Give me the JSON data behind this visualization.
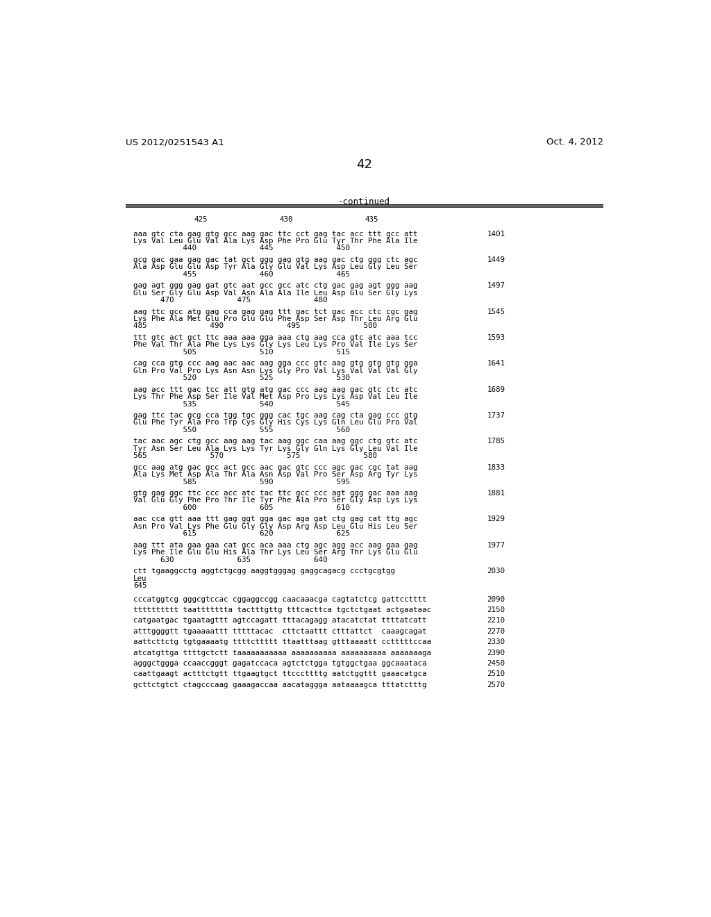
{
  "header_left": "US 2012/0251543 A1",
  "header_right": "Oct. 4, 2012",
  "page_number": "42",
  "continued_label": "-continued",
  "background_color": "#ffffff",
  "text_color": "#000000",
  "sequence_blocks": [
    {
      "dna": "aaa gtc cta gag gtg gcc aag gac ttc cct gag tac acc ttt gcc att",
      "aa": "Lys Val Leu Glu Val Ala Lys Asp Phe Pro Glu Tyr Thr Phe Ala Ile",
      "num_line": "           440              445              450",
      "right_num": "1401"
    },
    {
      "dna": "gcg gac gaa gag gac tat gct ggg gag gtg aag gac ctg ggg ctc agc",
      "aa": "Ala Asp Glu Glu Asp Tyr Ala Gly Glu Val Lys Asp Leu Gly Leu Ser",
      "num_line": "           455              460              465",
      "right_num": "1449"
    },
    {
      "dna": "gag agt ggg gag gat gtc aat gcc gcc atc ctg gac gag agt ggg aag",
      "aa": "Glu Ser Gly Glu Asp Val Asn Ala Ala Ile Leu Asp Glu Ser Gly Lys",
      "num_line": "      470              475              480",
      "right_num": "1497"
    },
    {
      "dna": "aag ttc gcc atg gag cca gag gag ttt gac tct gac acc ctc cgc gag",
      "aa": "Lys Phe Ala Met Glu Pro Glu Glu Phe Asp Ser Asp Thr Leu Arg Glu",
      "num_line": "485              490              495              500",
      "right_num": "1545"
    },
    {
      "dna": "ttt gtc act gct ttc aaa aaa gga aaa ctg aag cca gtc atc aaa tcc",
      "aa": "Phe Val Thr Ala Phe Lys Lys Gly Lys Leu Lys Pro Val Ile Lys Ser",
      "num_line": "           505              510              515",
      "right_num": "1593"
    },
    {
      "dna": "cag cca gtg ccc aag aac aac aag gga ccc gtc aag gtg gtg gtg gga",
      "aa": "Gln Pro Val Pro Lys Asn Asn Lys Gly Pro Val Lys Val Val Val Gly",
      "num_line": "           520              525              530",
      "right_num": "1641"
    },
    {
      "dna": "aag acc ttt gac tcc att gtg atg gac ccc aag aag gac gtc ctc atc",
      "aa": "Lys Thr Phe Asp Ser Ile Val Met Asp Pro Lys Lys Asp Val Leu Ile",
      "num_line": "           535              540              545",
      "right_num": "1689"
    },
    {
      "dna": "gag ttc tac gcg cca tgg tgc ggg cac tgc aag cag cta gag ccc gtg",
      "aa": "Glu Phe Tyr Ala Pro Trp Cys Gly His Cys Lys Gln Leu Glu Pro Val",
      "num_line": "           550              555              560",
      "right_num": "1737"
    },
    {
      "dna": "tac aac agc ctg gcc aag aag tac aag ggc caa aag ggc ctg gtc atc",
      "aa": "Tyr Asn Ser Leu Ala Lys Lys Tyr Lys Gly Gln Lys Gly Leu Val Ile",
      "num_line": "565              570              575              580",
      "right_num": "1785"
    },
    {
      "dna": "gcc aag atg gac gcc act gcc aac gac gtc ccc agc gac cgc tat aag",
      "aa": "Ala Lys Met Asp Ala Thr Ala Asn Asp Val Pro Ser Asp Arg Tyr Lys",
      "num_line": "           585              590              595",
      "right_num": "1833"
    },
    {
      "dna": "gtg gag ggc ttc ccc acc atc tac ttc gcc ccc agt ggg gac aaa aag",
      "aa": "Val Glu Gly Phe Pro Thr Ile Tyr Phe Ala Pro Ser Gly Asp Lys Lys",
      "num_line": "           600              605              610",
      "right_num": "1881"
    },
    {
      "dna": "aac cca gtt aaa ttt gag ggt gga gac aga gat ctg gag cat ttg agc",
      "aa": "Asn Pro Val Lys Phe Glu Gly Gly Asp Arg Asp Leu Glu His Leu Ser",
      "num_line": "           615              620              625",
      "right_num": "1929"
    },
    {
      "dna": "aag ttt ata gaa gaa cat gcc aca aaa ctg agc agg acc aag gaa gag",
      "aa": "Lys Phe Ile Glu Glu His Ala Thr Lys Leu Ser Arg Thr Lys Glu Glu",
      "num_line": "      630              635              640",
      "right_num": "1977"
    },
    {
      "dna": "ctt tgaaggcctg aggtctgcgg aaggtgggag gaggcagacg ccctgcgtgg",
      "aa": "Leu",
      "num_line": "645",
      "right_num": "2030"
    }
  ],
  "noncoding_blocks": [
    {
      "seq": "cccatggtcg gggcgtccac cggaggccgg caacaaacga cagtatctcg gattcctttt",
      "right_num": "2090"
    },
    {
      "seq": "tttttttttt taattttttta tactttgttg tttcacttca tgctctgaat actgaataac",
      "right_num": "2150"
    },
    {
      "seq": "catgaatgac tgaatagttt agtccagatt tttacagagg atacatctat ttttatcatt",
      "right_num": "2210"
    },
    {
      "seq": "atttggggtt tgaaaaattt tttttacac  cttctaattt ctttattct  caaagcagat",
      "right_num": "2270"
    },
    {
      "seq": "aattcttctg tgtgaaaatg ttttcttttt ttaatttaag gtttaaaatt cctttttccaa",
      "right_num": "2330"
    },
    {
      "seq": "atcatgttga ttttgctctt taaaaaaaaaaa aaaaaaaaaa aaaaaaaaaa aaaaaaaga",
      "right_num": "2390"
    },
    {
      "seq": "agggctggga ccaaccgggt gagatccaca agtctctgga tgtggctgaa ggcaaataca",
      "right_num": "2450"
    },
    {
      "seq": "caattgaagt actttctgtt ttgaagtgct ttcccttttg aatctggttt gaaacatgca",
      "right_num": "2510"
    },
    {
      "seq": "gcttctgtct ctagcccaag gaaagaccaa aacataggga aataaaagca tttatctttg",
      "right_num": "2570"
    }
  ]
}
